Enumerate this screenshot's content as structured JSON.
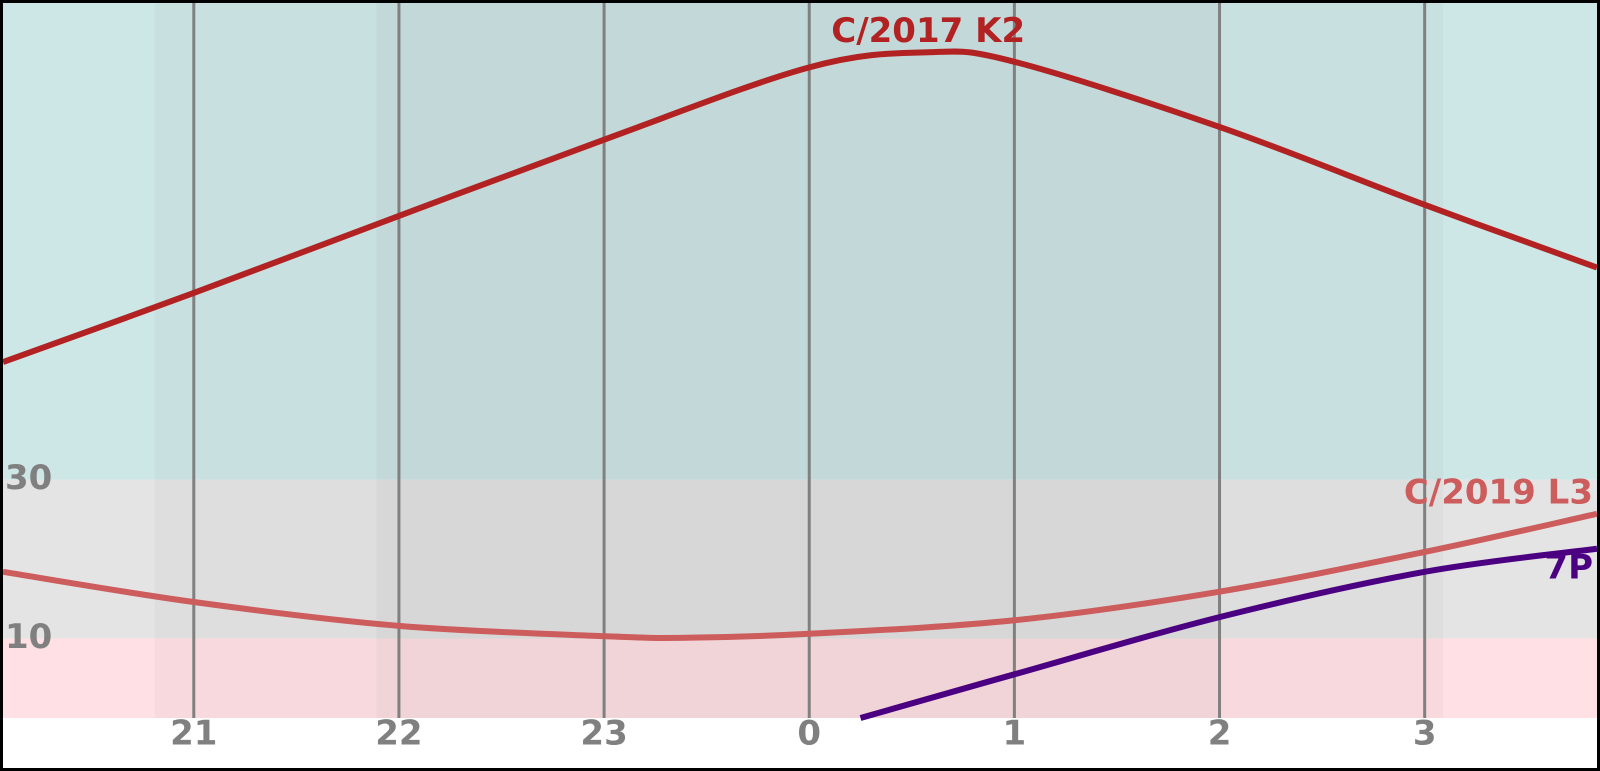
{
  "chart_data": {
    "type": "line",
    "xlim": [
      20.07,
      27.84
    ],
    "ylim": [
      0,
      90
    ],
    "xticks": [
      21,
      22,
      23,
      {
        "value": 24,
        "label": "0"
      },
      {
        "value": 25,
        "label": "1"
      },
      {
        "value": 26,
        "label": "2"
      },
      {
        "value": 27,
        "label": "3"
      }
    ],
    "yticks": [
      10,
      30
    ],
    "altitude_zones": [
      {
        "range": [
          0,
          10
        ],
        "color": "#ffe0e4"
      },
      {
        "range": [
          10,
          30
        ],
        "color": "#e4e4e4"
      },
      {
        "range": [
          30,
          90
        ],
        "color": "#cde6e6"
      }
    ],
    "time_shading": [
      {
        "range": [
          20.81,
          27.09
        ],
        "color": "rgba(120,120,120,0.05)"
      },
      {
        "range": [
          21.89,
          26.0
        ],
        "color": "rgba(120,120,120,0.06)"
      }
    ],
    "series": [
      {
        "name": "C/2017 K2",
        "color": "#b22222",
        "x": [
          20.07,
          21,
          22,
          23,
          24,
          24.58,
          25,
          26,
          27,
          27.84
        ],
        "values": [
          44.8,
          53.5,
          63.2,
          72.8,
          81.9,
          83.8,
          82.6,
          74.4,
          64.6,
          56.7
        ]
      },
      {
        "name": "C/2019 L3",
        "color": "#cd5c5c",
        "x": [
          20.07,
          21,
          22,
          23,
          23.4,
          24,
          25,
          26,
          27,
          27.84
        ],
        "values": [
          18.4,
          14.6,
          11.6,
          10.3,
          10.1,
          10.6,
          12.3,
          15.9,
          20.9,
          25.7
        ]
      },
      {
        "name": "7P",
        "color": "#4b0082",
        "x": [
          24.25,
          25,
          26,
          27,
          27.84
        ],
        "values": [
          0,
          5.5,
          12.7,
          18.4,
          21.3
        ]
      }
    ]
  }
}
